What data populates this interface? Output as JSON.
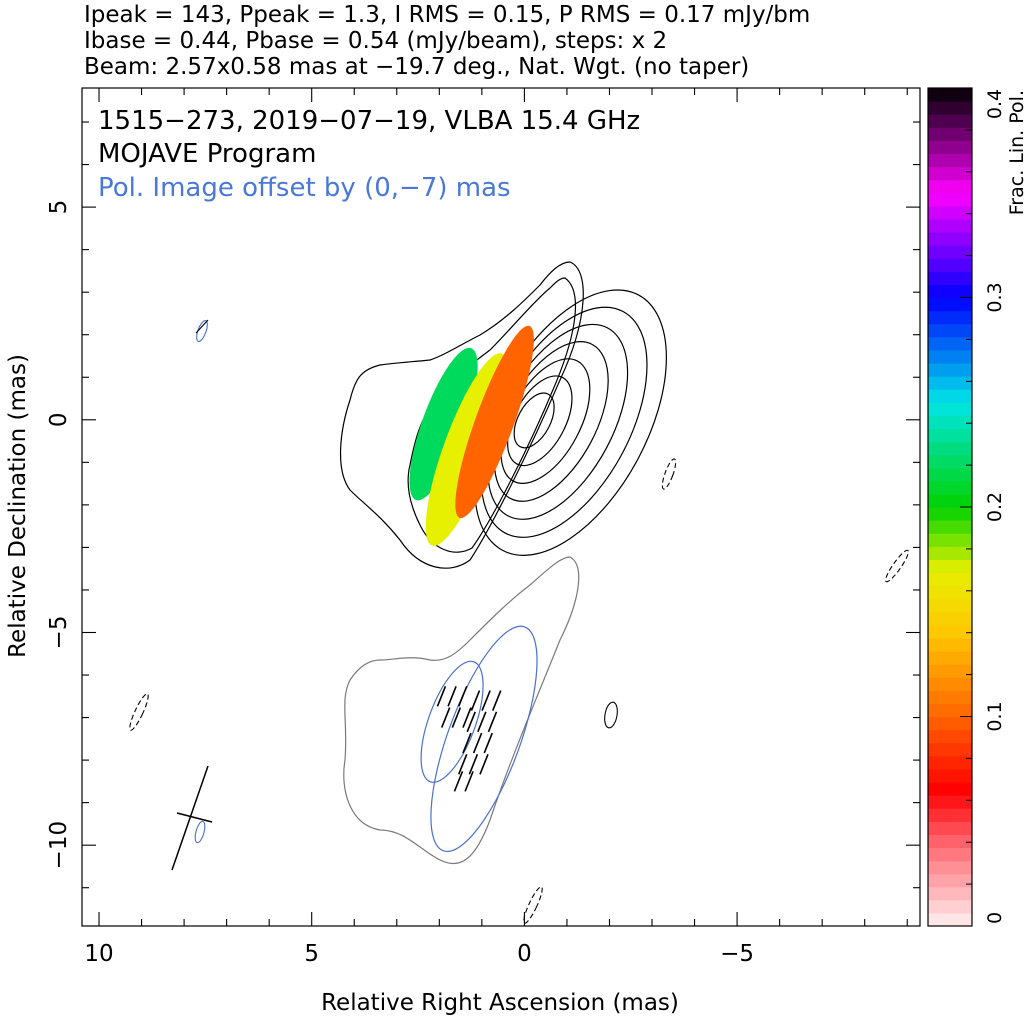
{
  "header": {
    "line1": "Ipeak = 143, Ppeak = 1.3, I RMS = 0.15, P RMS = 0.17 mJy/bm",
    "line2": "Ibase = 0.44, Pbase = 0.54 (mJy/beam), steps: x 2",
    "line3": "Beam: 2.57x0.58 mas at −19.7 deg., Nat. Wgt. (no taper)"
  },
  "annotations": {
    "source_line": "1515−273, 2019−07−19, VLBA 15.4 GHz",
    "program_line": "MOJAVE Program",
    "offset_line": "Pol. Image offset by (0,−7) mas"
  },
  "colors": {
    "offset_text": "#4a78d8",
    "pol_contour": "#7a7a7a",
    "ellipse_blue": "#4a6fd0"
  },
  "chart_data": {
    "type": "heatmap",
    "xlabel": "Relative Right Ascension (mas)",
    "ylabel": "Relative Declination (mas)",
    "xlim": [
      10.4,
      -9.3
    ],
    "ylim": [
      -11.9,
      7.8
    ],
    "x_ticks": [
      {
        "value": 10,
        "label": "10"
      },
      {
        "value": 5,
        "label": "5"
      },
      {
        "value": 0,
        "label": "0"
      },
      {
        "value": -5,
        "label": "−5"
      }
    ],
    "y_ticks": [
      {
        "value": 5,
        "label": "5"
      },
      {
        "value": 0,
        "label": "0"
      },
      {
        "value": -5,
        "label": "−5"
      },
      {
        "value": -10,
        "label": "−10"
      }
    ],
    "colorbar": {
      "label": "Frac. Lin. Pol.",
      "range": [
        0,
        0.4
      ],
      "ticks": [
        {
          "value": 0,
          "label": "0"
        },
        {
          "value": 0.1,
          "label": "0.1"
        },
        {
          "value": 0.2,
          "label": "0.2"
        },
        {
          "value": 0.3,
          "label": "0.3"
        },
        {
          "value": 0.4,
          "label": "0.4"
        }
      ]
    },
    "stokes_i_contours": {
      "center": [
        0,
        0
      ],
      "sizes": [
        [
          0.38,
          0.7
        ],
        [
          0.6,
          1.15
        ],
        [
          0.82,
          1.6
        ],
        [
          1.05,
          2.05
        ],
        [
          1.3,
          2.5
        ],
        [
          1.55,
          2.95
        ],
        [
          1.8,
          3.4
        ]
      ]
    },
    "frac_pol_patches": [
      {
        "ra": 1.9,
        "dec": -0.1,
        "w": 0.5,
        "h": 1.9,
        "angle": -20,
        "frac": 0.22
      },
      {
        "ra": 1.35,
        "dec": -0.7,
        "w": 0.55,
        "h": 2.4,
        "angle": -20,
        "frac": 0.17
      },
      {
        "ra": 0.7,
        "dec": -0.05,
        "w": 0.45,
        "h": 2.4,
        "angle": -20,
        "frac": 0.1
      }
    ],
    "pol_ellipses": [
      {
        "ra": 1.7,
        "dec": -7.1,
        "w": 0.55,
        "h": 1.5,
        "angle": -20
      },
      {
        "ra": 0.95,
        "dec": -7.5,
        "w": 0.85,
        "h": 2.8,
        "angle": -20
      }
    ],
    "evpa_vectors": [
      {
        "ra": 1.95,
        "dec": -6.5
      },
      {
        "ra": 1.7,
        "dec": -6.5
      },
      {
        "ra": 1.45,
        "dec": -6.5
      },
      {
        "ra": 1.85,
        "dec": -7.0
      },
      {
        "ra": 1.6,
        "dec": -7.0
      },
      {
        "ra": 1.35,
        "dec": -7.0
      },
      {
        "ra": 1.15,
        "dec": -6.6
      },
      {
        "ra": 0.9,
        "dec": -6.6
      },
      {
        "ra": 0.65,
        "dec": -6.6
      },
      {
        "ra": 1.25,
        "dec": -7.1
      },
      {
        "ra": 1.0,
        "dec": -7.1
      },
      {
        "ra": 0.75,
        "dec": -7.1
      },
      {
        "ra": 1.35,
        "dec": -7.6
      },
      {
        "ra": 1.1,
        "dec": -7.6
      },
      {
        "ra": 0.85,
        "dec": -7.6
      },
      {
        "ra": 1.45,
        "dec": -8.1
      },
      {
        "ra": 1.2,
        "dec": -8.1
      },
      {
        "ra": 0.95,
        "dec": -8.1
      },
      {
        "ra": 1.55,
        "dec": -8.5
      },
      {
        "ra": 1.3,
        "dec": -8.5
      }
    ]
  }
}
